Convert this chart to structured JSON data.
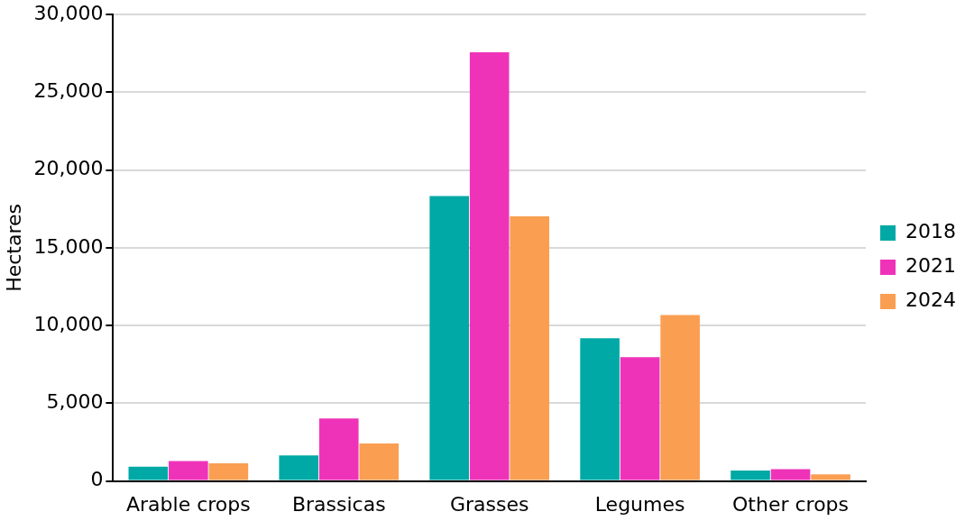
{
  "chart_data": {
    "type": "bar",
    "ylabel": "Hectares",
    "categories": [
      "Arable crops",
      "Brassicas",
      "Grasses",
      "Legumes",
      "Other crops"
    ],
    "series": [
      {
        "name": "2018",
        "color": "#00a9a5",
        "values": [
          920,
          1650,
          18330,
          9180,
          670
        ]
      },
      {
        "name": "2021",
        "color": "#ef33b9",
        "values": [
          1280,
          4020,
          27570,
          7970,
          760
        ]
      },
      {
        "name": "2024",
        "color": "#fa9e52",
        "values": [
          1130,
          2410,
          17030,
          10680,
          430
        ]
      }
    ],
    "ylim": [
      0,
      30000
    ],
    "yticks": [
      0,
      {
        "value": 5000,
        "label": "5,000"
      },
      {
        "value": 10000,
        "label": "10,000"
      },
      {
        "value": 15000,
        "label": "15,000"
      },
      {
        "value": 20000,
        "label": "20,000"
      },
      {
        "value": 25000,
        "label": "25,000"
      },
      {
        "value": 30000,
        "label": "30,000"
      }
    ],
    "grid": "y",
    "legend": "right"
  }
}
